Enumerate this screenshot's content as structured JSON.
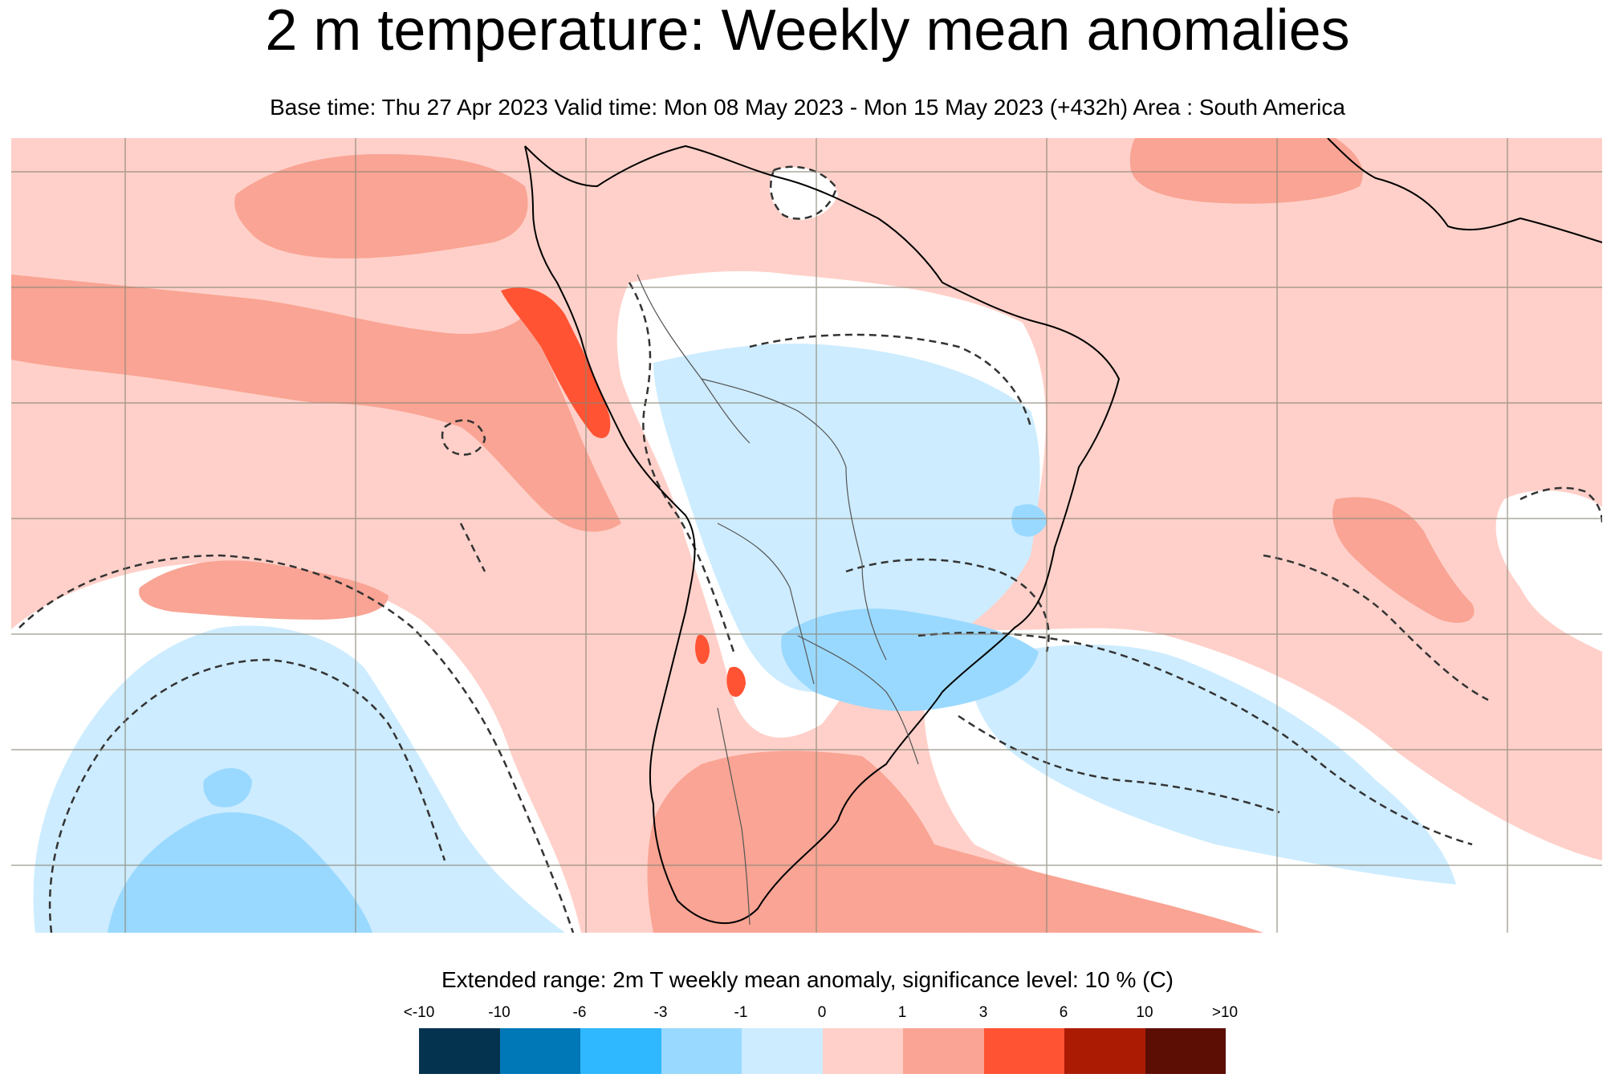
{
  "header": {
    "title": "2 m temperature: Weekly mean anomalies",
    "subtitle": "Base time: Thu 27 Apr 2023 Valid time: Mon 08 May 2023 - Mon 15 May 2023 (+432h) Area : South America"
  },
  "map": {
    "region": "South America",
    "colors": {
      "land_outline": "#000000",
      "gridline": "#8a8576",
      "contour_dashed": "#333333"
    }
  },
  "legend": {
    "title": "Extended range: 2m T weekly mean anomaly, significance level: 10 % (C)",
    "labels": [
      "<-10",
      "-10",
      "-6",
      "-3",
      "-1",
      "0",
      "1",
      "3",
      "6",
      "10",
      ">10"
    ],
    "bins": [
      {
        "color": "#04334f"
      },
      {
        "color": "#0077b6"
      },
      {
        "color": "#2fb8ff"
      },
      {
        "color": "#9ad9ff"
      },
      {
        "color": "#cdecff"
      },
      {
        "color": "#ffd0c9"
      },
      {
        "color": "#f9a494"
      },
      {
        "color": "#ff5333"
      },
      {
        "color": "#ab1b04"
      },
      {
        "color": "#5c0d04"
      }
    ]
  }
}
